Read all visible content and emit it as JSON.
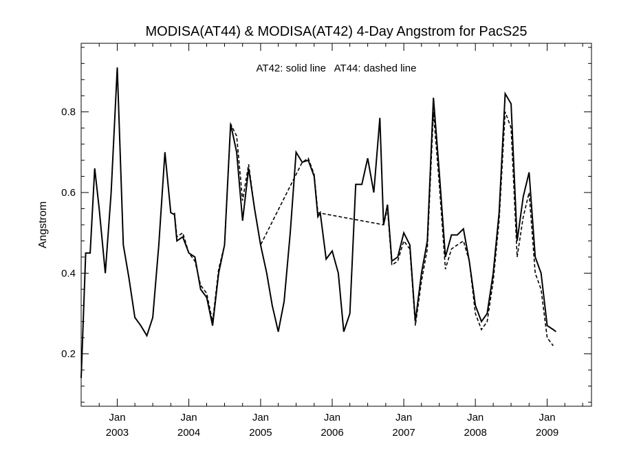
{
  "chart_data": {
    "type": "line",
    "title": "MODISA(AT44) & MODISA(AT42) 4-Day Angstrom for PacS25",
    "annotation": "AT42: solid line   AT44: dashed line",
    "xlabel": "",
    "ylabel": "Angstrom",
    "xlim": [
      "2002-07-01",
      "2009-08-15"
    ],
    "ylim": [
      0.07,
      0.97
    ],
    "y_ticks": [
      0.2,
      0.4,
      0.6,
      0.8
    ],
    "y_tick_labels": [
      "0.2",
      "0.4",
      "0.6",
      "0.8"
    ],
    "x_ticks": [
      {
        "date": "2003-01-01",
        "month": "Jan",
        "year": "2003"
      },
      {
        "date": "2004-01-01",
        "month": "Jan",
        "year": "2004"
      },
      {
        "date": "2005-01-01",
        "month": "Jan",
        "year": "2005"
      },
      {
        "date": "2006-01-01",
        "month": "Jan",
        "year": "2006"
      },
      {
        "date": "2007-01-01",
        "month": "Jan",
        "year": "2007"
      },
      {
        "date": "2008-01-01",
        "month": "Jan",
        "year": "2008"
      },
      {
        "date": "2009-01-01",
        "month": "Jan",
        "year": "2009"
      }
    ],
    "series": [
      {
        "name": "AT42",
        "style": "solid",
        "points": [
          [
            "2002-07-01",
            0.14
          ],
          [
            "2002-07-24",
            0.45
          ],
          [
            "2002-08-16",
            0.45
          ],
          [
            "2002-09-08",
            0.66
          ],
          [
            "2002-10-01",
            0.56
          ],
          [
            "2002-11-01",
            0.4
          ],
          [
            "2002-12-01",
            0.6
          ],
          [
            "2003-01-01",
            0.91
          ],
          [
            "2003-02-01",
            0.47
          ],
          [
            "2003-03-01",
            0.39
          ],
          [
            "2003-04-01",
            0.29
          ],
          [
            "2003-05-01",
            0.27
          ],
          [
            "2003-06-01",
            0.245
          ],
          [
            "2003-07-01",
            0.29
          ],
          [
            "2003-08-01",
            0.47
          ],
          [
            "2003-09-01",
            0.7
          ],
          [
            "2003-10-01",
            0.55
          ],
          [
            "2003-10-20",
            0.545
          ],
          [
            "2003-11-01",
            0.48
          ],
          [
            "2003-12-01",
            0.49
          ],
          [
            "2004-01-01",
            0.45
          ],
          [
            "2004-02-01",
            0.44
          ],
          [
            "2004-03-01",
            0.36
          ],
          [
            "2004-04-01",
            0.34
          ],
          [
            "2004-05-01",
            0.27
          ],
          [
            "2004-06-01",
            0.4
          ],
          [
            "2004-07-01",
            0.47
          ],
          [
            "2004-08-01",
            0.77
          ],
          [
            "2004-09-01",
            0.7
          ],
          [
            "2004-10-01",
            0.53
          ],
          [
            "2004-11-01",
            0.66
          ],
          [
            "2004-12-01",
            0.56
          ],
          [
            "2005-01-01",
            0.47
          ],
          [
            "2005-02-01",
            0.4
          ],
          [
            "2005-03-01",
            0.32
          ],
          [
            "2005-04-01",
            0.255
          ],
          [
            "2005-05-01",
            0.33
          ],
          [
            "2005-06-01",
            0.5
          ],
          [
            "2005-07-01",
            0.7
          ],
          [
            "2005-08-01",
            0.675
          ],
          [
            "2005-09-01",
            0.68
          ],
          [
            "2005-10-01",
            0.64
          ],
          [
            "2005-10-20",
            0.54
          ],
          [
            "2005-11-01",
            0.55
          ],
          [
            "2005-12-01",
            0.435
          ],
          [
            "2006-01-01",
            0.455
          ],
          [
            "2006-02-01",
            0.4
          ],
          [
            "2006-03-01",
            0.255
          ],
          [
            "2006-04-01",
            0.3
          ],
          [
            "2006-05-01",
            0.62
          ],
          [
            "2006-06-01",
            0.62
          ],
          [
            "2006-07-01",
            0.685
          ],
          [
            "2006-08-01",
            0.6
          ],
          [
            "2006-09-01",
            0.785
          ],
          [
            "2006-09-20",
            0.52
          ],
          [
            "2006-10-10",
            0.57
          ],
          [
            "2006-11-01",
            0.43
          ],
          [
            "2006-12-01",
            0.44
          ],
          [
            "2007-01-01",
            0.5
          ],
          [
            "2007-02-01",
            0.47
          ],
          [
            "2007-03-01",
            0.28
          ],
          [
            "2007-04-01",
            0.4
          ],
          [
            "2007-05-01",
            0.48
          ],
          [
            "2007-06-01",
            0.835
          ],
          [
            "2007-07-01",
            0.65
          ],
          [
            "2007-08-01",
            0.44
          ],
          [
            "2007-09-01",
            0.495
          ],
          [
            "2007-10-01",
            0.495
          ],
          [
            "2007-11-01",
            0.51
          ],
          [
            "2007-12-01",
            0.43
          ],
          [
            "2008-01-01",
            0.32
          ],
          [
            "2008-02-01",
            0.28
          ],
          [
            "2008-03-01",
            0.3
          ],
          [
            "2008-04-01",
            0.4
          ],
          [
            "2008-05-01",
            0.55
          ],
          [
            "2008-06-01",
            0.845
          ],
          [
            "2008-07-01",
            0.82
          ],
          [
            "2008-08-01",
            0.48
          ],
          [
            "2008-09-01",
            0.59
          ],
          [
            "2008-10-01",
            0.65
          ],
          [
            "2008-11-01",
            0.44
          ],
          [
            "2008-12-01",
            0.4
          ],
          [
            "2009-01-01",
            0.27
          ],
          [
            "2009-02-01",
            0.26
          ],
          [
            "2009-02-15",
            0.255
          ]
        ]
      },
      {
        "name": "AT44",
        "style": "dashed",
        "points": [
          [
            "2003-10-20",
            0.55
          ],
          [
            "2003-11-01",
            0.49
          ],
          [
            "2003-12-01",
            0.5
          ],
          [
            "2004-01-01",
            0.45
          ],
          [
            "2004-02-01",
            0.43
          ],
          [
            "2004-03-01",
            0.37
          ],
          [
            "2004-04-01",
            0.35
          ],
          [
            "2004-05-01",
            0.28
          ],
          [
            "2004-06-01",
            0.41
          ],
          [
            "2004-07-01",
            0.47
          ],
          [
            "2004-08-01",
            0.77
          ],
          [
            "2004-09-01",
            0.74
          ],
          [
            "2004-10-01",
            0.58
          ],
          [
            "2004-11-01",
            0.67
          ],
          [
            "2004-12-01",
            0.56
          ],
          [
            "2005-01-01",
            0.47
          ],
          [
            "2005-08-01",
            0.675
          ],
          [
            "2005-09-01",
            0.685
          ],
          [
            "2005-10-01",
            0.645
          ],
          [
            "2005-10-20",
            0.55
          ],
          [
            "2006-09-20",
            0.52
          ],
          [
            "2006-10-10",
            0.56
          ],
          [
            "2006-11-01",
            0.42
          ],
          [
            "2006-12-01",
            0.43
          ],
          [
            "2007-01-01",
            0.48
          ],
          [
            "2007-02-01",
            0.46
          ],
          [
            "2007-03-01",
            0.27
          ],
          [
            "2007-04-01",
            0.38
          ],
          [
            "2007-05-01",
            0.46
          ],
          [
            "2007-06-01",
            0.8
          ],
          [
            "2007-07-01",
            0.62
          ],
          [
            "2007-08-01",
            0.41
          ],
          [
            "2007-09-01",
            0.46
          ],
          [
            "2007-10-01",
            0.47
          ],
          [
            "2007-11-01",
            0.48
          ],
          [
            "2007-12-01",
            0.43
          ],
          [
            "2008-01-01",
            0.3
          ],
          [
            "2008-02-01",
            0.26
          ],
          [
            "2008-03-01",
            0.28
          ],
          [
            "2008-04-01",
            0.38
          ],
          [
            "2008-05-01",
            0.53
          ],
          [
            "2008-06-01",
            0.8
          ],
          [
            "2008-07-01",
            0.76
          ],
          [
            "2008-08-01",
            0.44
          ],
          [
            "2008-09-01",
            0.54
          ],
          [
            "2008-10-01",
            0.6
          ],
          [
            "2008-11-01",
            0.4
          ],
          [
            "2008-12-01",
            0.36
          ],
          [
            "2009-01-01",
            0.24
          ],
          [
            "2009-02-01",
            0.22
          ]
        ]
      }
    ],
    "grid": false,
    "legend": "none"
  }
}
